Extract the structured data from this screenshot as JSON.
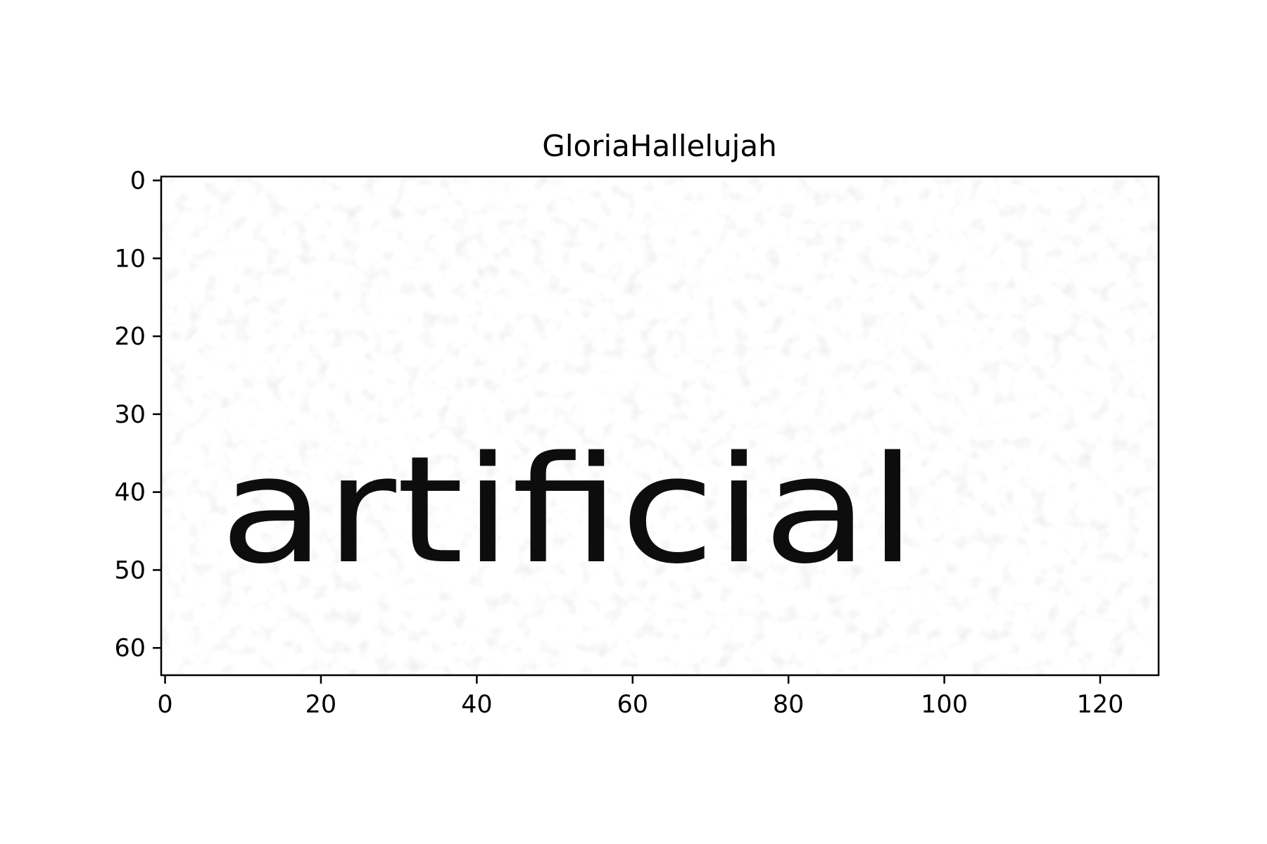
{
  "chart_data": {
    "type": "heatmap",
    "title": "GloriaHallelujah",
    "xlabel": "",
    "ylabel": "",
    "image_width": 128,
    "image_height": 64,
    "xlim": [
      -0.5,
      127.5
    ],
    "ylim": [
      63.5,
      -0.5
    ],
    "x_ticks": [
      0,
      20,
      40,
      60,
      80,
      100,
      120
    ],
    "y_ticks": [
      0,
      10,
      20,
      30,
      40,
      50,
      60
    ],
    "colormap": "gray",
    "grid": false,
    "rendered_text": "artificial",
    "noise": "light gray speckle over white background"
  }
}
